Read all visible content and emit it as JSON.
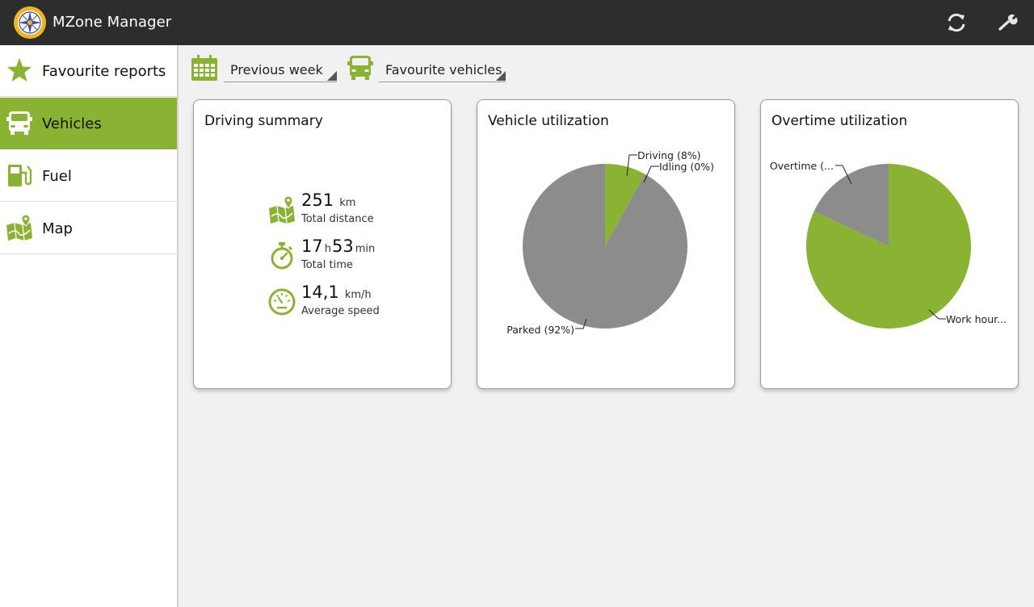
{
  "app": {
    "title": "MZone Manager"
  },
  "toolbar": {
    "refresh_icon": "refresh-icon",
    "settings_icon": "wrench-icon"
  },
  "sidebar": {
    "items": [
      {
        "label": "Favourite reports",
        "icon": "star-icon",
        "active": false
      },
      {
        "label": "Vehicles",
        "icon": "vehicle-icon",
        "active": true
      },
      {
        "label": "Fuel",
        "icon": "fuel-pump-icon",
        "active": false
      },
      {
        "label": "Map",
        "icon": "map-icon",
        "active": false
      }
    ]
  },
  "filters": {
    "period": {
      "value": "Previous week",
      "icon": "calendar-icon"
    },
    "vehicles": {
      "value": "Favourite vehicles",
      "icon": "vehicle-icon"
    }
  },
  "colors": {
    "accent": "#8ab233",
    "actionbar": "#2d2d2d",
    "pie_grey": "#8c8c8c"
  },
  "driving_summary": {
    "title": "Driving summary",
    "distance": {
      "value": "251",
      "unit": "km",
      "label": "Total distance"
    },
    "time": {
      "hours": "17",
      "hours_unit": "h",
      "minutes": "53",
      "minutes_unit": "min",
      "label": "Total time"
    },
    "speed": {
      "value": "14,1",
      "unit": "km/h",
      "label": "Average speed"
    }
  },
  "chart_data": [
    {
      "type": "pie",
      "title": "Vehicle utilization",
      "slices": [
        {
          "label": "Driving (8%)",
          "value": 8,
          "color": "#8ab233"
        },
        {
          "label": "Idling (0%)",
          "value": 0,
          "color": "#8ab233"
        },
        {
          "label": "Parked (92%)",
          "value": 92,
          "color": "#8c8c8c"
        }
      ]
    },
    {
      "type": "pie",
      "title": "Overtime utilization",
      "slices": [
        {
          "label": "Work hour...",
          "value": 82,
          "color": "#8ab233"
        },
        {
          "label": "Overtime (...",
          "value": 18,
          "color": "#8c8c8c"
        }
      ]
    }
  ]
}
